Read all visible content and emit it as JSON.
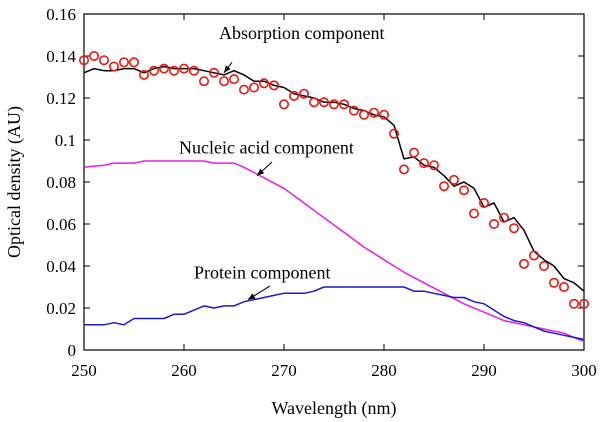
{
  "chart_data": {
    "type": "line",
    "xlabel": "Wavelength (nm)",
    "ylabel": "Optical density (AU)",
    "xlim": [
      250,
      300
    ],
    "ylim": [
      0,
      0.16
    ],
    "x_ticks": [
      250,
      260,
      270,
      280,
      290,
      300
    ],
    "y_ticks": [
      0,
      0.02,
      0.04,
      0.06,
      0.08,
      0.1,
      0.12,
      0.14,
      0.16
    ],
    "y_tick_labels": [
      "0",
      "0.02",
      "0.04",
      "0.06",
      "0.08",
      "0.1",
      "0.12",
      "0.14",
      "0.16"
    ],
    "grid": false,
    "series": [
      {
        "key": "absorption_line",
        "style": "line",
        "color": "#000000",
        "x": [
          250,
          251,
          252,
          253,
          254,
          255,
          256,
          257,
          258,
          259,
          260,
          261,
          262,
          263,
          264,
          265,
          266,
          267,
          268,
          269,
          270,
          271,
          272,
          273,
          274,
          275,
          276,
          277,
          278,
          279,
          280,
          281,
          282,
          283,
          284,
          285,
          286,
          287,
          288,
          289,
          290,
          291,
          292,
          293,
          294,
          295,
          296,
          297,
          298,
          299,
          300
        ],
        "y": [
          0.132,
          0.134,
          0.133,
          0.133,
          0.134,
          0.134,
          0.132,
          0.134,
          0.135,
          0.134,
          0.134,
          0.134,
          0.133,
          0.132,
          0.131,
          0.133,
          0.131,
          0.128,
          0.128,
          0.126,
          0.125,
          0.122,
          0.121,
          0.12,
          0.118,
          0.118,
          0.117,
          0.115,
          0.114,
          0.112,
          0.111,
          0.107,
          0.091,
          0.092,
          0.088,
          0.087,
          0.083,
          0.078,
          0.08,
          0.077,
          0.068,
          0.07,
          0.061,
          0.063,
          0.057,
          0.047,
          0.043,
          0.04,
          0.034,
          0.032,
          0.028
        ]
      },
      {
        "key": "absorption_points",
        "style": "markers",
        "color": "#e8170e",
        "x": [
          250,
          251,
          252,
          253,
          254,
          255,
          256,
          257,
          258,
          259,
          260,
          261,
          262,
          263,
          264,
          265,
          266,
          267,
          268,
          269,
          270,
          271,
          272,
          273,
          274,
          275,
          276,
          277,
          278,
          279,
          280,
          281,
          282,
          283,
          284,
          285,
          286,
          287,
          288,
          289,
          290,
          291,
          292,
          293,
          294,
          295,
          296,
          297,
          298,
          299,
          300
        ],
        "y": [
          0.138,
          0.14,
          0.138,
          0.135,
          0.137,
          0.137,
          0.131,
          0.133,
          0.134,
          0.133,
          0.134,
          0.133,
          0.128,
          0.132,
          0.128,
          0.129,
          0.124,
          0.125,
          0.127,
          0.126,
          0.117,
          0.121,
          0.122,
          0.118,
          0.118,
          0.117,
          0.117,
          0.114,
          0.112,
          0.113,
          0.112,
          0.103,
          0.086,
          0.094,
          0.089,
          0.088,
          0.078,
          0.081,
          0.076,
          0.065,
          0.07,
          0.06,
          0.063,
          0.058,
          0.041,
          0.045,
          0.04,
          0.032,
          0.03,
          0.022,
          0.022
        ]
      },
      {
        "key": "nucleic",
        "style": "line",
        "color": "#e81ee0",
        "x": [
          250,
          252,
          253,
          254,
          255,
          256,
          257,
          258,
          260,
          262,
          263,
          264,
          265,
          266,
          268,
          270,
          272,
          274,
          276,
          278,
          280,
          282,
          284,
          286,
          288,
          290,
          292,
          294,
          296,
          298,
          300
        ],
        "y": [
          0.087,
          0.088,
          0.089,
          0.089,
          0.089,
          0.09,
          0.09,
          0.09,
          0.09,
          0.09,
          0.089,
          0.089,
          0.089,
          0.087,
          0.082,
          0.077,
          0.07,
          0.063,
          0.056,
          0.049,
          0.043,
          0.037,
          0.032,
          0.027,
          0.022,
          0.018,
          0.014,
          0.012,
          0.01,
          0.008,
          0.004
        ]
      },
      {
        "key": "protein",
        "style": "line",
        "color": "#1a1acc",
        "x": [
          250,
          251,
          252,
          253,
          254,
          255,
          256,
          257,
          258,
          259,
          260,
          261,
          262,
          263,
          264,
          265,
          266,
          267,
          268,
          269,
          270,
          271,
          272,
          273,
          274,
          275,
          276,
          277,
          278,
          279,
          280,
          281,
          282,
          283,
          284,
          285,
          286,
          287,
          288,
          289,
          290,
          291,
          292,
          293,
          294,
          295,
          296,
          297,
          298,
          299,
          300
        ],
        "y": [
          0.012,
          0.012,
          0.012,
          0.013,
          0.012,
          0.015,
          0.015,
          0.015,
          0.015,
          0.017,
          0.017,
          0.019,
          0.021,
          0.02,
          0.021,
          0.021,
          0.023,
          0.024,
          0.025,
          0.026,
          0.027,
          0.027,
          0.027,
          0.028,
          0.03,
          0.03,
          0.03,
          0.03,
          0.03,
          0.03,
          0.03,
          0.03,
          0.03,
          0.028,
          0.028,
          0.027,
          0.026,
          0.025,
          0.025,
          0.023,
          0.022,
          0.019,
          0.016,
          0.014,
          0.013,
          0.011,
          0.009,
          0.008,
          0.007,
          0.006,
          0.005
        ]
      }
    ],
    "annotations": [
      {
        "key": "absorption",
        "text": "Absorption component",
        "text_x": 263.5,
        "text_y": 0.148,
        "arrow_from": [
          264.8,
          0.137
        ],
        "arrow_to": [
          264,
          0.132
        ]
      },
      {
        "key": "nucleic",
        "text": "Nucleic acid component",
        "text_x": 259.5,
        "text_y": 0.0935,
        "arrow_from": [
          268.8,
          0.0895
        ],
        "arrow_to": [
          267.3,
          0.083
        ]
      },
      {
        "key": "protein",
        "text": "Protein component",
        "text_x": 261,
        "text_y": 0.034,
        "arrow_from": [
          268.6,
          0.0305
        ],
        "arrow_to": [
          266.4,
          0.024
        ]
      }
    ]
  }
}
